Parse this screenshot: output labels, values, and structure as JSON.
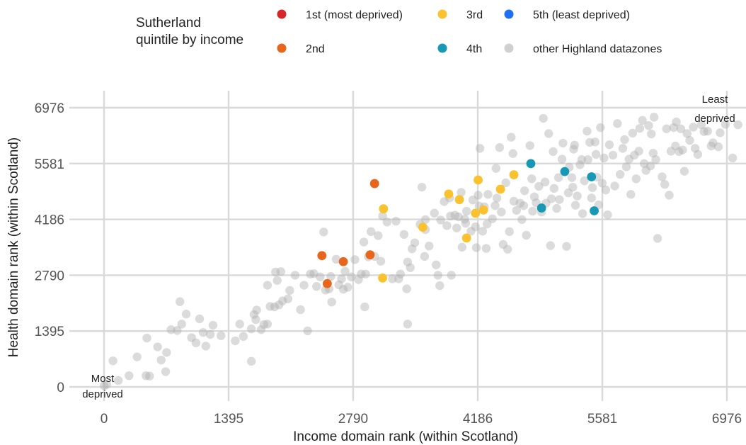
{
  "chart_data": {
    "type": "scatter",
    "xlabel": "Income domain rank (within Scotland)",
    "ylabel": "Health domain rank (within Scotland)",
    "xlim": [
      0,
      6976
    ],
    "ylim": [
      0,
      6976
    ],
    "xticks": [
      "0",
      "1395",
      "2790",
      "4186",
      "5581",
      "6976"
    ],
    "yticks": [
      "0",
      "1395",
      "2790",
      "4186",
      "5581",
      "6976"
    ],
    "grid": true,
    "legend_placement": "top",
    "legend_title": "Sutherland\nquintile by income",
    "corner_annotations": {
      "bottom_left": "Most\ndeprived",
      "top_right": "Least\ndeprived"
    },
    "series": [
      {
        "name": "1st (most deprived)",
        "color": "#d62728",
        "points": []
      },
      {
        "name": "2nd",
        "color": "#e8661c",
        "points": [
          [
            2440,
            3280
          ],
          [
            2500,
            2580
          ],
          [
            2680,
            3130
          ],
          [
            2980,
            3300
          ],
          [
            3030,
            5080
          ]
        ]
      },
      {
        "name": "3rd",
        "color": "#f9c22e",
        "points": [
          [
            3120,
            2720
          ],
          [
            3130,
            4450
          ],
          [
            3570,
            3990
          ],
          [
            3860,
            4820
          ],
          [
            3980,
            4680
          ],
          [
            4060,
            3720
          ],
          [
            4160,
            4340
          ],
          [
            4190,
            5170
          ],
          [
            4250,
            4420
          ],
          [
            4440,
            4940
          ],
          [
            4590,
            5300
          ]
        ]
      },
      {
        "name": "4th",
        "color": "#1799b5",
        "points": [
          [
            4780,
            5580
          ],
          [
            4900,
            4470
          ],
          [
            5160,
            5380
          ],
          [
            5460,
            5250
          ],
          [
            5490,
            4400
          ]
        ]
      },
      {
        "name": "5th (least deprived)",
        "color": "#1e6ff1",
        "points": []
      },
      {
        "name": "other Highland datazones",
        "color": "#c2c2c2",
        "points": [
          [
            0,
            30
          ],
          [
            30,
            60
          ],
          [
            100,
            650
          ],
          [
            160,
            160
          ],
          [
            280,
            280
          ],
          [
            370,
            750
          ],
          [
            470,
            280
          ],
          [
            480,
            1220
          ],
          [
            510,
            270
          ],
          [
            600,
            1000
          ],
          [
            640,
            670
          ],
          [
            690,
            380
          ],
          [
            700,
            860
          ],
          [
            750,
            1430
          ],
          [
            820,
            1410
          ],
          [
            850,
            2130
          ],
          [
            870,
            1570
          ],
          [
            920,
            1820
          ],
          [
            980,
            1230
          ],
          [
            1030,
            1100
          ],
          [
            1070,
            1700
          ],
          [
            1110,
            1360
          ],
          [
            1140,
            1020
          ],
          [
            1190,
            1310
          ],
          [
            1220,
            1540
          ],
          [
            1310,
            1280
          ],
          [
            1470,
            1150
          ],
          [
            1520,
            1570
          ],
          [
            1560,
            1260
          ],
          [
            1650,
            1450
          ],
          [
            1650,
            640
          ],
          [
            1680,
            1810
          ],
          [
            1700,
            1680
          ],
          [
            1710,
            1920
          ],
          [
            1760,
            1430
          ],
          [
            1790,
            1560
          ],
          [
            1830,
            1570
          ],
          [
            1830,
            2540
          ],
          [
            1860,
            2010
          ],
          [
            1910,
            2000
          ],
          [
            1920,
            2870
          ],
          [
            1940,
            2660
          ],
          [
            1960,
            2050
          ],
          [
            1980,
            2880
          ],
          [
            2000,
            2150
          ],
          [
            2060,
            2200
          ],
          [
            2080,
            2410
          ],
          [
            2140,
            2790
          ],
          [
            2200,
            1930
          ],
          [
            2240,
            2540
          ],
          [
            2280,
            1400
          ],
          [
            2310,
            2820
          ],
          [
            2350,
            2830
          ],
          [
            2380,
            2510
          ],
          [
            2420,
            2750
          ],
          [
            2460,
            3870
          ],
          [
            2480,
            2420
          ],
          [
            2520,
            2450
          ],
          [
            2540,
            2760
          ],
          [
            2550,
            2120
          ],
          [
            2600,
            3190
          ],
          [
            2630,
            2550
          ],
          [
            2660,
            2700
          ],
          [
            2680,
            2440
          ],
          [
            2700,
            2890
          ],
          [
            2730,
            2490
          ],
          [
            2770,
            2750
          ],
          [
            2810,
            3180
          ],
          [
            2850,
            2680
          ],
          [
            2880,
            2820
          ],
          [
            2910,
            3620
          ],
          [
            2920,
            2000
          ],
          [
            2930,
            2820
          ],
          [
            2960,
            3250
          ],
          [
            2990,
            3880
          ],
          [
            3030,
            3260
          ],
          [
            3070,
            3780
          ],
          [
            3100,
            3140
          ],
          [
            3120,
            4270
          ],
          [
            3170,
            4120
          ],
          [
            3230,
            2700
          ],
          [
            3270,
            4140
          ],
          [
            3300,
            2700
          ],
          [
            3320,
            2820
          ],
          [
            3360,
            3810
          ],
          [
            3390,
            2450
          ],
          [
            3400,
            3120
          ],
          [
            3400,
            1570
          ],
          [
            3430,
            2980
          ],
          [
            3450,
            3450
          ],
          [
            3480,
            3600
          ],
          [
            3540,
            4060
          ],
          [
            3560,
            4990
          ],
          [
            3590,
            3260
          ],
          [
            3600,
            3930
          ],
          [
            3600,
            4180
          ],
          [
            3640,
            3520
          ],
          [
            3700,
            4340
          ],
          [
            3720,
            3050
          ],
          [
            3740,
            2790
          ],
          [
            3760,
            2530
          ],
          [
            3770,
            4170
          ],
          [
            3810,
            4630
          ],
          [
            3840,
            4030
          ],
          [
            3870,
            4720
          ],
          [
            3880,
            4270
          ],
          [
            3890,
            2790
          ],
          [
            3930,
            4290
          ],
          [
            3950,
            3970
          ],
          [
            3970,
            4250
          ],
          [
            4000,
            4860
          ],
          [
            4010,
            3490
          ],
          [
            4040,
            4190
          ],
          [
            4050,
            4090
          ],
          [
            4060,
            4390
          ],
          [
            4110,
            3890
          ],
          [
            4130,
            4670
          ],
          [
            4160,
            4000
          ],
          [
            4170,
            3480
          ],
          [
            4190,
            4790
          ],
          [
            4200,
            4520
          ],
          [
            4210,
            5960
          ],
          [
            4240,
            3890
          ],
          [
            4260,
            4500
          ],
          [
            4280,
            3460
          ],
          [
            4290,
            4070
          ],
          [
            4300,
            4810
          ],
          [
            4350,
            4200
          ],
          [
            4380,
            4530
          ],
          [
            4390,
            5460
          ],
          [
            4400,
            4720
          ],
          [
            4430,
            5980
          ],
          [
            4450,
            4370
          ],
          [
            4470,
            3560
          ],
          [
            4500,
            5100
          ],
          [
            4520,
            3440
          ],
          [
            4540,
            3880
          ],
          [
            4560,
            6240
          ],
          [
            4580,
            5830
          ],
          [
            4590,
            4640
          ],
          [
            4620,
            4410
          ],
          [
            4660,
            4590
          ],
          [
            4680,
            4180
          ],
          [
            4700,
            4530
          ],
          [
            4710,
            4900
          ],
          [
            4730,
            3790
          ],
          [
            4770,
            6030
          ],
          [
            4790,
            5200
          ],
          [
            4800,
            4390
          ],
          [
            4820,
            4750
          ],
          [
            4840,
            4600
          ],
          [
            4870,
            5010
          ],
          [
            4900,
            4370
          ],
          [
            4920,
            6710
          ],
          [
            4940,
            5120
          ],
          [
            4950,
            4590
          ],
          [
            4980,
            6330
          ],
          [
            5000,
            3530
          ],
          [
            5010,
            4700
          ],
          [
            5030,
            5880
          ],
          [
            5040,
            4960
          ],
          [
            5070,
            4460
          ],
          [
            5090,
            5230
          ],
          [
            5100,
            4680
          ],
          [
            5130,
            5690
          ],
          [
            5140,
            6090
          ],
          [
            5180,
            3510
          ],
          [
            5200,
            4850
          ],
          [
            5210,
            5490
          ],
          [
            5240,
            5230
          ],
          [
            5250,
            4990
          ],
          [
            5260,
            5940
          ],
          [
            5270,
            6040
          ],
          [
            5280,
            4540
          ],
          [
            5300,
            4770
          ],
          [
            5330,
            5550
          ],
          [
            5350,
            5680
          ],
          [
            5360,
            4330
          ],
          [
            5380,
            5150
          ],
          [
            5410,
            6390
          ],
          [
            5420,
            5680
          ],
          [
            5440,
            6110
          ],
          [
            5460,
            4720
          ],
          [
            5470,
            4980
          ],
          [
            5500,
            6120
          ],
          [
            5510,
            5810
          ],
          [
            5520,
            5240
          ],
          [
            5540,
            4550
          ],
          [
            5560,
            6480
          ],
          [
            5580,
            5090
          ],
          [
            5600,
            5720
          ],
          [
            5620,
            4920
          ],
          [
            5640,
            4300
          ],
          [
            5660,
            6050
          ],
          [
            5700,
            5790
          ],
          [
            5720,
            5020
          ],
          [
            5750,
            6580
          ],
          [
            5780,
            5310
          ],
          [
            5810,
            5960
          ],
          [
            5830,
            6180
          ],
          [
            5850,
            5500
          ],
          [
            5880,
            5690
          ],
          [
            5900,
            4810
          ],
          [
            5920,
            6340
          ],
          [
            5940,
            5790
          ],
          [
            5960,
            5200
          ],
          [
            5990,
            5890
          ],
          [
            6000,
            6460
          ],
          [
            6030,
            6660
          ],
          [
            6050,
            5580
          ],
          [
            6070,
            5410
          ],
          [
            6100,
            6530
          ],
          [
            6120,
            5520
          ],
          [
            6130,
            6320
          ],
          [
            6150,
            5840
          ],
          [
            6160,
            6740
          ],
          [
            6180,
            5680
          ],
          [
            6200,
            3710
          ],
          [
            6250,
            5250
          ],
          [
            6280,
            5060
          ],
          [
            6300,
            6450
          ],
          [
            6330,
            4790
          ],
          [
            6350,
            5890
          ],
          [
            6380,
            6480
          ],
          [
            6400,
            6020
          ],
          [
            6410,
            6620
          ],
          [
            6440,
            5880
          ],
          [
            6460,
            6450
          ],
          [
            6480,
            5920
          ],
          [
            6500,
            5390
          ],
          [
            6530,
            6330
          ],
          [
            6560,
            6160
          ],
          [
            6600,
            6490
          ],
          [
            6620,
            5960
          ],
          [
            6650,
            5810
          ],
          [
            6690,
            6550
          ],
          [
            6720,
            6380
          ],
          [
            6760,
            6390
          ],
          [
            6800,
            6020
          ],
          [
            6820,
            6100
          ],
          [
            6880,
            6000
          ],
          [
            6900,
            6350
          ],
          [
            6960,
            6560
          ],
          [
            7040,
            5720
          ],
          [
            7100,
            6550
          ]
        ]
      }
    ]
  }
}
